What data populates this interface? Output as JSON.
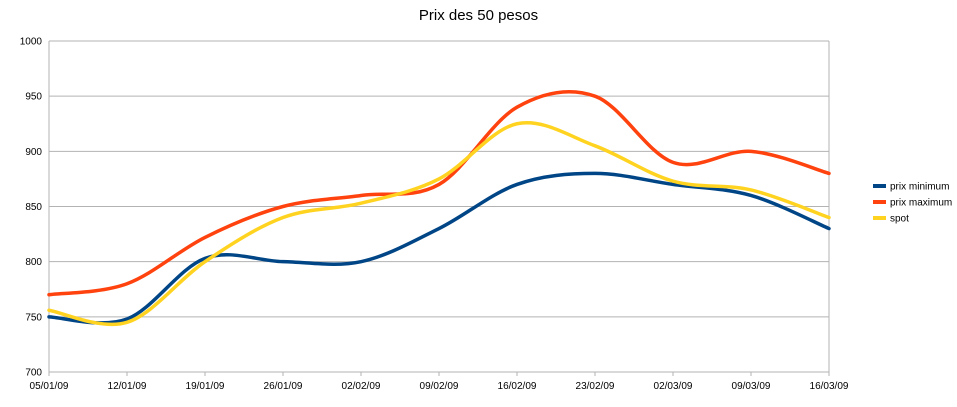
{
  "chart_data": {
    "type": "line",
    "title": "Prix des 50 pesos",
    "xlabel": "",
    "ylabel": "",
    "categories": [
      "05/01/09",
      "12/01/09",
      "19/01/09",
      "26/01/09",
      "02/02/09",
      "09/02/09",
      "16/02/09",
      "23/02/09",
      "02/03/09",
      "09/03/09",
      "16/03/09"
    ],
    "ylim": [
      700,
      1000
    ],
    "yticks": [
      700,
      750,
      800,
      850,
      900,
      950,
      1000
    ],
    "grid": true,
    "legend_position": "right",
    "smooth": true,
    "series": [
      {
        "name": "prix minimum",
        "color": "#004586",
        "values": [
          750,
          748,
          803,
          800,
          800,
          830,
          870,
          880,
          870,
          860,
          830
        ]
      },
      {
        "name": "prix maximum",
        "color": "#ff420e",
        "values": [
          770,
          780,
          822,
          850,
          860,
          870,
          940,
          950,
          890,
          900,
          880
        ]
      },
      {
        "name": "spot",
        "color": "#ffd320",
        "values": [
          756,
          745,
          800,
          840,
          853,
          875,
          925,
          905,
          873,
          865,
          840
        ]
      }
    ]
  }
}
